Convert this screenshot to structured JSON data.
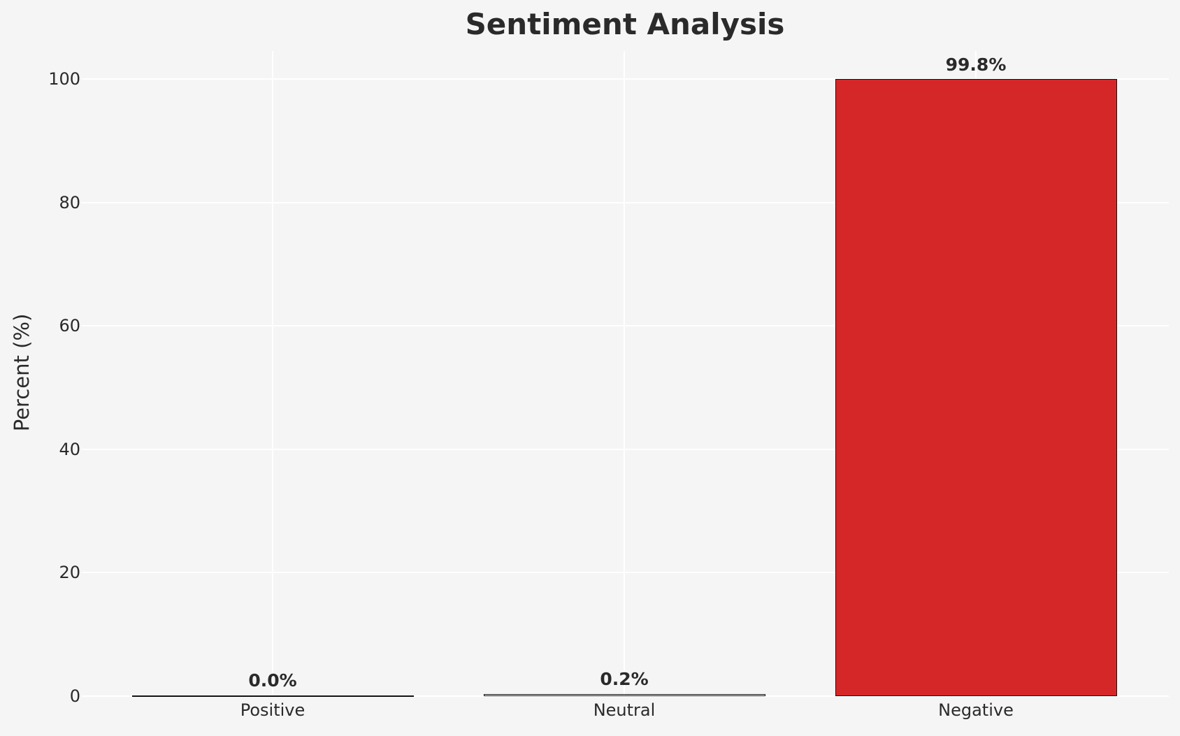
{
  "chart_data": {
    "type": "bar",
    "title": "Sentiment Analysis",
    "xlabel": "",
    "ylabel": "Percent (%)",
    "categories": [
      "Positive",
      "Neutral",
      "Negative"
    ],
    "values": [
      0.0,
      0.2,
      99.8
    ],
    "bar_labels": [
      "0.0%",
      "0.2%",
      "99.8%"
    ],
    "yticks": [
      0,
      20,
      40,
      60,
      80,
      100
    ],
    "ylim": [
      0,
      104.5
    ],
    "grid": "both",
    "legend_position": "none",
    "bar_colors": [
      null,
      null,
      "#d62728"
    ],
    "bar_edge_color": "#141414",
    "background_color": "#f5f5f5",
    "grid_color": "#ffffff",
    "text_color": "#2a2a2a"
  }
}
